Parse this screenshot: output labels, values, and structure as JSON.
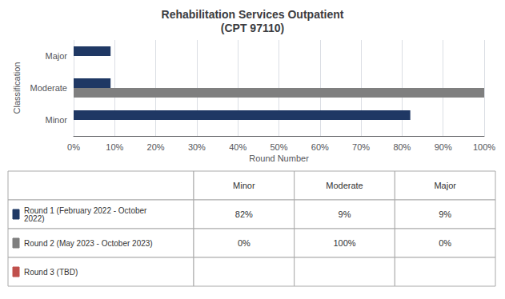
{
  "chart_data": {
    "type": "bar",
    "orientation": "horizontal",
    "title": "Rehabilitation Services Outpatient\n(CPT 97110)",
    "xlabel": "Round Number",
    "ylabel": "Classification",
    "categories": [
      "Minor",
      "Moderate",
      "Major"
    ],
    "series": [
      {
        "name": "Round 1 (February 2022 - October\n2022)",
        "color": "#1F3864",
        "values": [
          82,
          9,
          9
        ]
      },
      {
        "name": "Round 2 (May 2023 - October 2023)",
        "color": "#7F7F7F",
        "values": [
          0,
          100,
          0
        ]
      },
      {
        "name": "Round 3 (TBD)",
        "color": "#C0504D",
        "values": [
          null,
          null,
          null
        ]
      }
    ],
    "xlim": [
      0,
      100
    ],
    "xticks": [
      {
        "value": 0,
        "label": "0%"
      },
      {
        "value": 10,
        "label": "10%"
      },
      {
        "value": 20,
        "label": "20%"
      },
      {
        "value": 30,
        "label": "30%"
      },
      {
        "value": 40,
        "label": "40%"
      },
      {
        "value": 50,
        "label": "50%"
      },
      {
        "value": 60,
        "label": "60%"
      },
      {
        "value": 70,
        "label": "70%"
      },
      {
        "value": 80,
        "label": "80%"
      },
      {
        "value": 90,
        "label": "90%"
      },
      {
        "value": 100,
        "label": "100%"
      }
    ],
    "grid": true,
    "table": {
      "columns": [
        "Minor",
        "Moderate",
        "Major"
      ],
      "rows": [
        [
          "82%",
          "9%",
          "9%"
        ],
        [
          "0%",
          "100%",
          "0%"
        ],
        [
          null,
          null,
          null
        ]
      ]
    }
  }
}
